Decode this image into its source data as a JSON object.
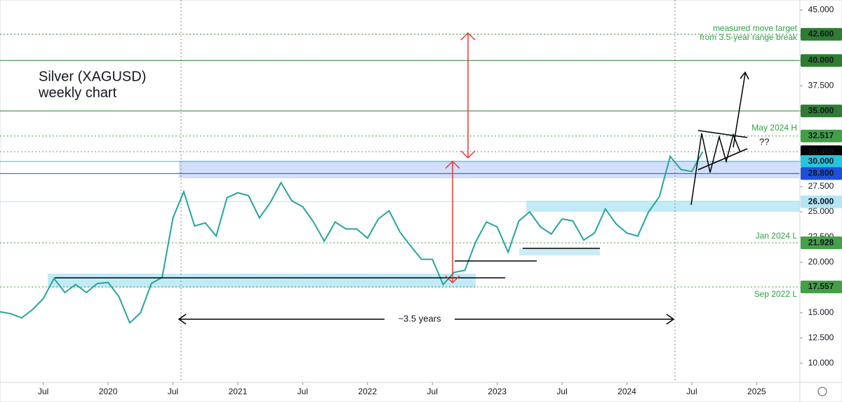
{
  "chart_data": {
    "type": "line",
    "title": "Silver (XAGUSD)",
    "subtitle": "weekly chart",
    "x": [
      "2019-03",
      "2019-04",
      "2019-05",
      "2019-06",
      "2019-07",
      "2019-08",
      "2019-09",
      "2019-10",
      "2019-11",
      "2019-12",
      "2020-01",
      "2020-02",
      "2020-03",
      "2020-04",
      "2020-05",
      "2020-06",
      "2020-07",
      "2020-08",
      "2020-09",
      "2020-10",
      "2020-11",
      "2020-12",
      "2021-01",
      "2021-02",
      "2021-03",
      "2021-04",
      "2021-05",
      "2021-06",
      "2021-07",
      "2021-08",
      "2021-09",
      "2021-10",
      "2021-11",
      "2021-12",
      "2022-01",
      "2022-02",
      "2022-03",
      "2022-04",
      "2022-05",
      "2022-06",
      "2022-07",
      "2022-08",
      "2022-09",
      "2022-10",
      "2022-11",
      "2022-12",
      "2023-01",
      "2023-02",
      "2023-03",
      "2023-04",
      "2023-05",
      "2023-06",
      "2023-07",
      "2023-08",
      "2023-09",
      "2023-10",
      "2023-11",
      "2023-12",
      "2024-01",
      "2024-02",
      "2024-03",
      "2024-04",
      "2024-05",
      "2024-06",
      "2024-07",
      "2024-08"
    ],
    "values": [
      15.1,
      14.9,
      14.5,
      15.3,
      16.4,
      18.4,
      17.0,
      17.8,
      17.0,
      17.9,
      18.0,
      16.6,
      14.0,
      15.0,
      17.9,
      18.5,
      24.4,
      27.0,
      23.6,
      23.9,
      22.6,
      26.4,
      26.9,
      26.6,
      24.4,
      25.9,
      27.9,
      26.1,
      25.5,
      24.0,
      22.1,
      24.0,
      23.3,
      23.3,
      22.4,
      24.3,
      25.1,
      23.0,
      21.6,
      20.3,
      20.3,
      17.8,
      19.0,
      19.2,
      22.0,
      24.0,
      23.5,
      21.0,
      24.1,
      25.0,
      23.5,
      22.8,
      24.3,
      24.1,
      22.2,
      22.9,
      25.3,
      23.8,
      22.9,
      22.6,
      25.0,
      26.5,
      30.5,
      29.2,
      29.0,
      30.959
    ],
    "color": "#26a69a",
    "xlim": [
      "2019-03",
      "2025-05"
    ],
    "xticks": [
      {
        "value": "2019-07",
        "label": "Jul"
      },
      {
        "value": "2020-01",
        "label": "2020"
      },
      {
        "value": "2020-07",
        "label": "Jul"
      },
      {
        "value": "2021-01",
        "label": "2021"
      },
      {
        "value": "2021-07",
        "label": "Jul"
      },
      {
        "value": "2022-01",
        "label": "2022"
      },
      {
        "value": "2022-07",
        "label": "Jul"
      },
      {
        "value": "2023-01",
        "label": "2023"
      },
      {
        "value": "2023-07",
        "label": "Jul"
      },
      {
        "value": "2024-01",
        "label": "2024"
      },
      {
        "value": "2024-07",
        "label": "Jul"
      },
      {
        "value": "2025-01",
        "label": "2025"
      }
    ],
    "ylim": [
      8.1,
      46
    ],
    "yticks": [
      {
        "value": 10,
        "label": "10.000"
      },
      {
        "value": 12.5,
        "label": "12.500"
      },
      {
        "value": 15,
        "label": "15.000"
      },
      {
        "value": 17.5,
        "label": "17.500"
      },
      {
        "value": 20,
        "label": "20.000"
      },
      {
        "value": 22.5,
        "label": "22.500"
      },
      {
        "value": 25,
        "label": "25.000"
      },
      {
        "value": 27.5,
        "label": "27.500"
      },
      {
        "value": 30,
        "label": "30.000"
      },
      {
        "value": 32.5,
        "label": "32.500"
      },
      {
        "value": 35,
        "label": "35.000"
      },
      {
        "value": 37.5,
        "label": "37.500"
      },
      {
        "value": 40,
        "label": "40.000"
      },
      {
        "value": 42.5,
        "label": "42.500"
      },
      {
        "value": 45,
        "label": "45.000"
      }
    ],
    "levels": [
      {
        "value": 42.6,
        "label": "42.600",
        "color": "#2e7d32",
        "text_color": "#ffffff",
        "dashed": true
      },
      {
        "value": 40,
        "label": "40.000",
        "color": "#2e7d32",
        "text_color": "#ffffff",
        "dashed": false
      },
      {
        "value": 35,
        "label": "35.000",
        "color": "#2e7d32",
        "text_color": "#ffffff",
        "dashed": false
      },
      {
        "value": 32.517,
        "label": "32.517",
        "color": "#43a047",
        "text_color": "#ffffff",
        "dashed": true
      },
      {
        "value": 30.959,
        "label": "30.959",
        "color": "#000000",
        "text_color": "#ffffff",
        "dashed": true
      },
      {
        "value": 30,
        "label": "30.000",
        "color": "#26c6da",
        "text_color": "#ffffff",
        "dashed": false
      },
      {
        "value": 28.8,
        "label": "28.800",
        "color": "#1e4fd8",
        "text_color": "#ffffff",
        "dashed": false
      },
      {
        "value": 26,
        "label": "26.000",
        "color": "#b3e5f5",
        "text_color": "#000000",
        "dashed": false
      },
      {
        "value": 21.928,
        "label": "21.928",
        "color": "#43a047",
        "text_color": "#ffffff",
        "dashed": true
      },
      {
        "value": 17.557,
        "label": "17.557",
        "color": "#43a047",
        "text_color": "#ffffff",
        "dashed": true
      }
    ],
    "annotations": {
      "target_1": "measured move target",
      "target_2": "from 3.5-year range break",
      "may_high": "May 2024 H",
      "jan_low": "Jan 2024 L",
      "sep_low": "Sep 2022 L",
      "span": "~3.5 years",
      "question": "??"
    }
  }
}
